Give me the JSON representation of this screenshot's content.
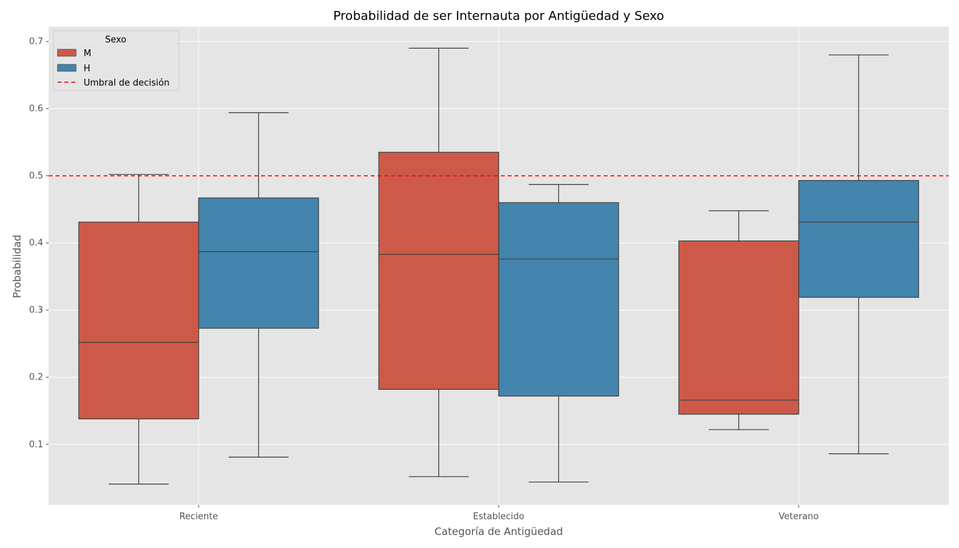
{
  "chart_data": {
    "type": "box",
    "title": "Probabilidad de ser Internauta por Antigüedad y Sexo",
    "xlabel": "Categoría de Antigüedad",
    "ylabel": "Probabilidad",
    "categories": [
      "Reciente",
      "Establecido",
      "Veterano"
    ],
    "ylim": [
      0.01,
      0.722
    ],
    "yticks": [
      0.1,
      0.2,
      0.3,
      0.4,
      0.5,
      0.6,
      0.7
    ],
    "ytick_labels": [
      "0.1",
      "0.2",
      "0.3",
      "0.4",
      "0.5",
      "0.6",
      "0.7"
    ],
    "grid": true,
    "legend": {
      "title": "Sexo",
      "position": "top-left",
      "threshold_label": "Umbral de decisión"
    },
    "threshold": {
      "value": 0.5,
      "color": "#ff0000"
    },
    "series": [
      {
        "name": "M",
        "color": "#cd5a48",
        "boxes": [
          {
            "min": 0.041,
            "q1": 0.138,
            "median": 0.252,
            "q3": 0.431,
            "max": 0.502
          },
          {
            "min": 0.052,
            "q1": 0.182,
            "median": 0.383,
            "q3": 0.535,
            "max": 0.69
          },
          {
            "min": 0.122,
            "q1": 0.145,
            "median": 0.166,
            "q3": 0.403,
            "max": 0.448
          }
        ]
      },
      {
        "name": "H",
        "color": "#4385ad",
        "boxes": [
          {
            "min": 0.081,
            "q1": 0.273,
            "median": 0.387,
            "q3": 0.467,
            "max": 0.594
          },
          {
            "min": 0.044,
            "q1": 0.172,
            "median": 0.376,
            "q3": 0.46,
            "max": 0.487
          },
          {
            "min": 0.086,
            "q1": 0.319,
            "median": 0.431,
            "q3": 0.493,
            "max": 0.68
          }
        ]
      }
    ]
  }
}
